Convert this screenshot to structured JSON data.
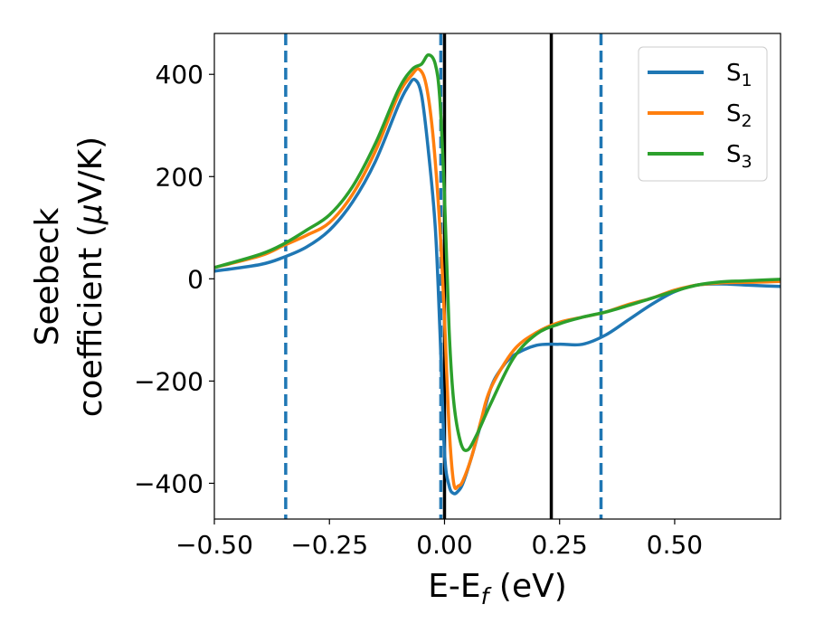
{
  "chart_data": {
    "type": "line",
    "title": "",
    "xlabel": {
      "main": "E-E",
      "sub": "f",
      "suffix": " (eV)"
    },
    "ylabel": {
      "line1": "Seebeck",
      "line2_pre": "coefficient  (",
      "mu": "μ",
      "line2_post": "V/K)"
    },
    "xlim": [
      -0.5,
      0.73
    ],
    "ylim": [
      -470,
      480
    ],
    "xticks": [
      -0.5,
      -0.25,
      0.0,
      0.25,
      0.5
    ],
    "xtick_labels": [
      "−0.50",
      "−0.25",
      "0.00",
      "0.25",
      "0.50"
    ],
    "yticks": [
      -400,
      -200,
      0,
      200,
      400
    ],
    "ytick_labels": [
      "−400",
      "−200",
      "0",
      "200",
      "400"
    ],
    "grid": false,
    "legend_position": "top-right",
    "series": [
      {
        "name": {
          "main": "S",
          "sub": "1"
        },
        "color": "#1f77b4",
        "x": [
          -0.5,
          -0.4,
          -0.35,
          -0.3,
          -0.25,
          -0.2,
          -0.15,
          -0.1,
          -0.08,
          -0.065,
          -0.05,
          -0.035,
          -0.02,
          -0.01,
          0.0,
          0.01,
          0.02,
          0.03,
          0.04,
          0.06,
          0.08,
          0.1,
          0.12,
          0.15,
          0.2,
          0.25,
          0.3,
          0.35,
          0.4,
          0.45,
          0.5,
          0.55,
          0.6,
          0.65,
          0.7,
          0.73
        ],
        "y": [
          15,
          28,
          42,
          62,
          95,
          150,
          230,
          340,
          375,
          390,
          360,
          250,
          100,
          -100,
          -340,
          -405,
          -420,
          -415,
          -400,
          -345,
          -280,
          -215,
          -180,
          -150,
          -130,
          -128,
          -128,
          -110,
          -80,
          -50,
          -25,
          -12,
          -10,
          -12,
          -14,
          -15
        ]
      },
      {
        "name": {
          "main": "S",
          "sub": "2"
        },
        "color": "#ff7f0e",
        "x": [
          -0.5,
          -0.4,
          -0.35,
          -0.3,
          -0.25,
          -0.2,
          -0.15,
          -0.1,
          -0.07,
          -0.055,
          -0.04,
          -0.025,
          -0.01,
          0.0,
          0.01,
          0.02,
          0.03,
          0.04,
          0.06,
          0.08,
          0.1,
          0.15,
          0.2,
          0.25,
          0.3,
          0.35,
          0.4,
          0.45,
          0.5,
          0.55,
          0.6,
          0.65,
          0.7,
          0.73
        ],
        "y": [
          22,
          45,
          65,
          85,
          110,
          165,
          250,
          360,
          400,
          410,
          380,
          280,
          100,
          -80,
          -290,
          -400,
          -405,
          -395,
          -345,
          -275,
          -215,
          -140,
          -105,
          -85,
          -75,
          -65,
          -50,
          -38,
          -22,
          -12,
          -8,
          -7,
          -6,
          -5
        ]
      },
      {
        "name": {
          "main": "S",
          "sub": "3"
        },
        "color": "#2ca02c",
        "x": [
          -0.5,
          -0.4,
          -0.35,
          -0.3,
          -0.25,
          -0.2,
          -0.15,
          -0.1,
          -0.07,
          -0.05,
          -0.035,
          -0.02,
          -0.01,
          0.0,
          0.01,
          0.02,
          0.035,
          0.05,
          0.07,
          0.1,
          0.15,
          0.2,
          0.25,
          0.3,
          0.35,
          0.4,
          0.45,
          0.5,
          0.55,
          0.6,
          0.65,
          0.7,
          0.73
        ],
        "y": [
          22,
          48,
          68,
          95,
          125,
          180,
          265,
          370,
          410,
          420,
          438,
          420,
          350,
          160,
          -100,
          -240,
          -320,
          -335,
          -305,
          -245,
          -155,
          -108,
          -88,
          -75,
          -65,
          -52,
          -38,
          -24,
          -12,
          -6,
          -4,
          -2,
          -1
        ]
      }
    ],
    "vertical_lines": [
      {
        "x": -0.345,
        "style": "dashed",
        "color": "#1f77b4"
      },
      {
        "x": -0.008,
        "style": "dashed",
        "color": "#1f77b4"
      },
      {
        "x": 0.0,
        "style": "solid",
        "color": "#000000"
      },
      {
        "x": 0.232,
        "style": "solid",
        "color": "#000000"
      },
      {
        "x": 0.34,
        "style": "dashed",
        "color": "#1f77b4"
      }
    ]
  }
}
